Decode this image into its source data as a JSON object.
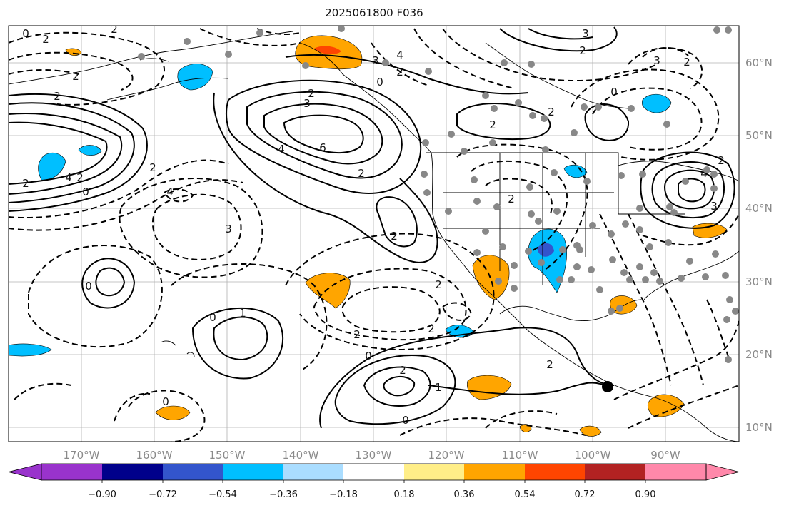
{
  "title": "2025061800 F036",
  "lat_labels": [
    "60°N",
    "50°N",
    "40°N",
    "30°N",
    "20°N",
    "10°N"
  ],
  "lon_labels": [
    "170°W",
    "160°W",
    "150°W",
    "140°W",
    "130°W",
    "120°W",
    "110°W",
    "100°W",
    "90°W"
  ],
  "colorbar": {
    "ticks": [
      "−0.90",
      "−0.72",
      "−0.54",
      "−0.36",
      "−0.18",
      "0.18",
      "0.36",
      "0.54",
      "0.72",
      "0.90"
    ],
    "colors": [
      "#9933cc",
      "#00008b",
      "#3355cc",
      "#00bfff",
      "#aaddff",
      "#ffffff",
      "#ffee88",
      "#ffa500",
      "#ff4500",
      "#b22222",
      "#ff88aa"
    ]
  },
  "contour_labels": [
    "0",
    "2",
    "2",
    "2",
    "3",
    "4",
    "6",
    "4",
    "2",
    "2",
    "0",
    "2",
    "3",
    "2",
    "2",
    "4",
    "3",
    "2",
    "4",
    "2",
    "0",
    "2",
    "2",
    "3",
    "1",
    "0",
    "1",
    "0",
    "2",
    "2",
    "2",
    "0",
    "2",
    "2",
    "0",
    "2",
    "0",
    "2",
    "4",
    "2",
    "3",
    "2",
    "2",
    "3",
    "0"
  ],
  "colors": {
    "positive": "#ffa500",
    "positive_strong": "#ff4500",
    "negative": "#00bfff",
    "negative_strong": "#3355cc",
    "station": "#888888",
    "grid": "#b0b0b0"
  }
}
